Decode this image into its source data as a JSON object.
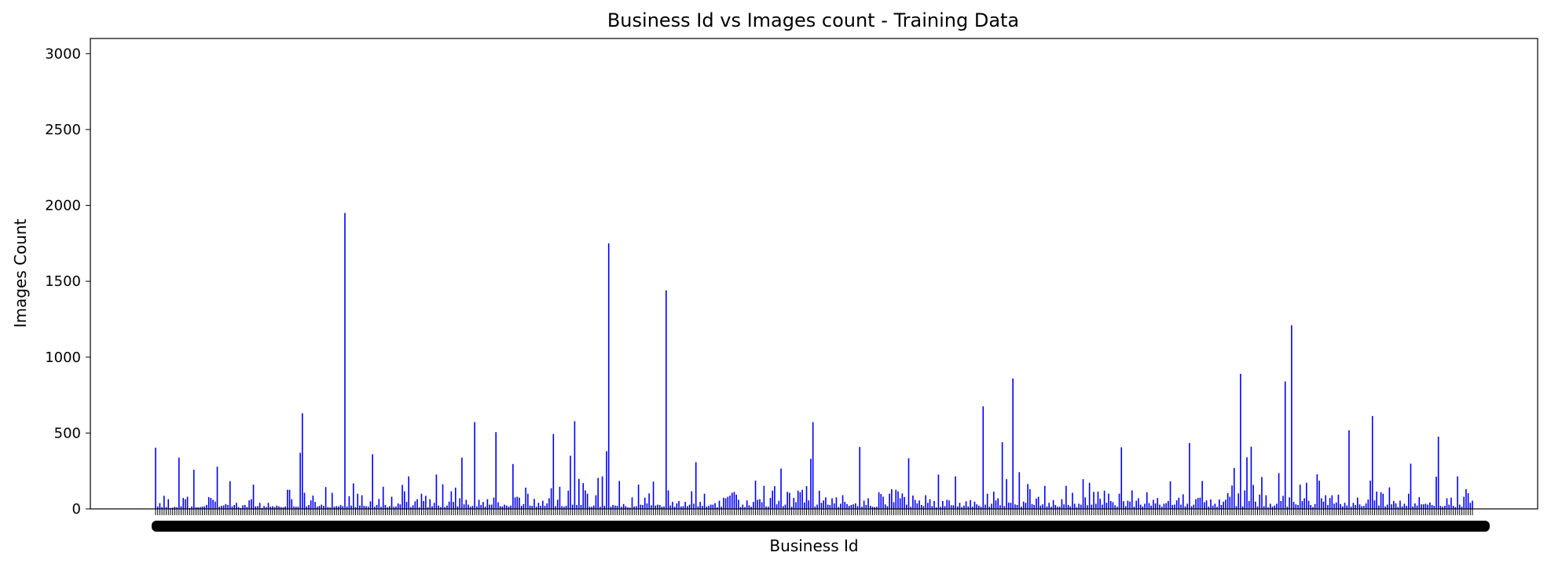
{
  "chart_data": {
    "type": "bar",
    "title": "Business Id vs Images count - Training Data",
    "xlabel": "Business Id",
    "ylabel": "Images Count",
    "ylim": [
      0,
      3100
    ],
    "yticks": [
      0,
      500,
      1000,
      1500,
      2000,
      2500,
      3000
    ],
    "bar_color": "#0000ff",
    "x_tick_labels_overlapping": true,
    "values": [
      403,
      16,
      38,
      12,
      86,
      12,
      64,
      6,
      8,
      14,
      11,
      338,
      18,
      72,
      64,
      80,
      6,
      16,
      258,
      11,
      10,
      12,
      16,
      16,
      26,
      78,
      72,
      60,
      48,
      278,
      14,
      20,
      23,
      32,
      26,
      183,
      16,
      26,
      40,
      12,
      6,
      23,
      26,
      12,
      56,
      64,
      160,
      16,
      18,
      40,
      6,
      19,
      12,
      40,
      14,
      18,
      12,
      22,
      16,
      12,
      10,
      16,
      126,
      126,
      64,
      16,
      14,
      14,
      370,
      630,
      106,
      16,
      26,
      56,
      88,
      46,
      14,
      20,
      28,
      20,
      144,
      12,
      10,
      106,
      14,
      18,
      16,
      26,
      18,
      1950,
      15,
      84,
      22,
      168,
      12,
      100,
      22,
      90,
      20,
      18,
      14,
      50,
      360,
      14,
      26,
      66,
      14,
      146,
      26,
      10,
      18,
      80,
      14,
      16,
      36,
      30,
      158,
      116,
      46,
      214,
      12,
      24,
      50,
      64,
      10,
      100,
      52,
      86,
      10,
      64,
      18,
      40,
      226,
      22,
      12,
      162,
      12,
      22,
      48,
      116,
      46,
      140,
      16,
      70,
      338,
      30,
      60,
      28,
      14,
      20,
      572,
      16,
      60,
      26,
      46,
      14,
      64,
      28,
      28,
      74,
      506,
      44,
      18,
      16,
      28,
      22,
      14,
      22,
      296,
      76,
      80,
      74,
      20,
      32,
      140,
      100,
      22,
      20,
      66,
      14,
      40,
      20,
      54,
      20,
      36,
      70,
      136,
      494,
      18,
      60,
      146,
      18,
      14,
      20,
      120,
      350,
      28,
      578,
      26,
      198,
      26,
      170,
      122,
      100,
      14,
      14,
      22,
      90,
      204,
      14,
      214,
      20,
      380,
      1750,
      14,
      26,
      22,
      20,
      184,
      14,
      32,
      18,
      10,
      8,
      76,
      16,
      18,
      160,
      28,
      26,
      74,
      36,
      102,
      24,
      180,
      22,
      28,
      26,
      14,
      16,
      1440,
      122,
      22,
      46,
      14,
      36,
      52,
      16,
      18,
      46,
      18,
      28,
      116,
      34,
      308,
      16,
      46,
      20,
      100,
      14,
      20,
      28,
      28,
      38,
      10,
      54,
      14,
      74,
      70,
      80,
      88,
      106,
      112,
      94,
      60,
      12,
      28,
      12,
      56,
      24,
      14,
      46,
      186,
      60,
      64,
      44,
      152,
      16,
      14,
      72,
      120,
      150,
      30,
      54,
      266,
      18,
      28,
      112,
      106,
      14,
      72,
      44,
      120,
      110,
      126,
      42,
      150,
      56,
      330,
      572,
      16,
      28,
      120,
      40,
      56,
      76,
      28,
      26,
      70,
      36,
      76,
      12,
      34,
      90,
      46,
      32,
      20,
      26,
      30,
      36,
      18,
      408,
      14,
      54,
      26,
      70,
      20,
      14,
      12,
      14,
      110,
      98,
      80,
      30,
      18,
      100,
      130,
      44,
      126,
      116,
      70,
      102,
      78,
      28,
      334,
      14,
      88,
      60,
      36,
      56,
      26,
      18,
      90,
      40,
      64,
      18,
      52,
      10,
      226,
      14,
      52,
      18,
      60,
      56,
      24,
      24,
      214,
      16,
      40,
      12,
      22,
      50,
      16,
      58,
      14,
      48,
      30,
      22,
      14,
      676,
      28,
      100,
      14,
      34,
      114,
      56,
      70,
      24,
      440,
      18,
      196,
      42,
      40,
      860,
      30,
      26,
      242,
      14,
      48,
      40,
      164,
      130,
      32,
      26,
      68,
      80,
      22,
      30,
      152,
      16,
      40,
      14,
      58,
      26,
      14,
      14,
      64,
      30,
      152,
      26,
      16,
      106,
      34,
      10,
      34,
      28,
      196,
      76,
      24,
      172,
      28,
      112,
      34,
      114,
      66,
      28,
      120,
      40,
      100,
      52,
      44,
      24,
      14,
      100,
      406,
      50,
      18,
      54,
      48,
      122,
      14,
      54,
      70,
      28,
      16,
      34,
      110,
      38,
      22,
      60,
      36,
      72,
      28,
      14,
      34,
      38,
      52,
      182,
      26,
      28,
      56,
      74,
      28,
      96,
      16,
      34,
      434,
      18,
      28,
      64,
      72,
      74,
      184,
      44,
      56,
      14,
      62,
      22,
      34,
      14,
      62,
      26,
      48,
      60,
      104,
      80,
      154,
      270,
      18,
      102,
      890,
      16,
      122,
      340,
      52,
      410,
      158,
      48,
      16,
      94,
      210,
      18,
      90,
      10,
      34,
      14,
      22,
      34,
      236,
      52,
      86,
      840,
      14,
      76,
      1210,
      46,
      30,
      26,
      160,
      52,
      70,
      172,
      54,
      26,
      12,
      32,
      228,
      186,
      70,
      48,
      90,
      26,
      72,
      90,
      34,
      42,
      94,
      32,
      16,
      40,
      22,
      518,
      14,
      40,
      26,
      74,
      30,
      18,
      20,
      36,
      62,
      186,
      612,
      56,
      114,
      22,
      110,
      100,
      16,
      28,
      142,
      30,
      52,
      36,
      12,
      54,
      16,
      34,
      20,
      100,
      298,
      16,
      36,
      22,
      78,
      30,
      30,
      34,
      28,
      42,
      26,
      20,
      212,
      476,
      20,
      14,
      20,
      70,
      28,
      74,
      20,
      12,
      214,
      28,
      14,
      80,
      130,
      104,
      40,
      54
    ]
  }
}
